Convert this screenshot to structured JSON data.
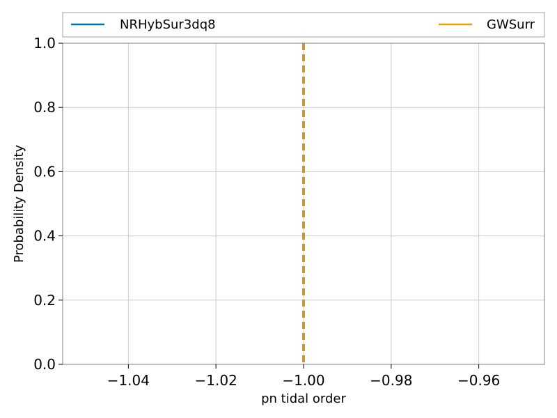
{
  "chart_data": {
    "type": "line",
    "xlabel": "pn tidal order",
    "ylabel": "Probability Density",
    "xlim": [
      -1.055,
      -0.945
    ],
    "ylim": [
      0.0,
      1.0
    ],
    "x_ticks": [
      -1.04,
      -1.02,
      -1.0,
      -0.98,
      -0.96
    ],
    "x_tick_labels": [
      "−1.04",
      "−1.02",
      "−1.00",
      "−0.98",
      "−0.96"
    ],
    "y_ticks": [
      0.0,
      0.2,
      0.4,
      0.6,
      0.8,
      1.0
    ],
    "y_tick_labels": [
      "0.0",
      "0.2",
      "0.4",
      "0.6",
      "0.8",
      "1.0"
    ],
    "grid": true,
    "legend_position": "top",
    "series": [
      {
        "name": "NRHybSur3dq8",
        "color": "#0072b2"
      },
      {
        "name": "GWSurr",
        "color": "#e69f00"
      }
    ],
    "injection": {
      "x": -1.0,
      "color": "#c8963c",
      "style": "dashed"
    }
  }
}
